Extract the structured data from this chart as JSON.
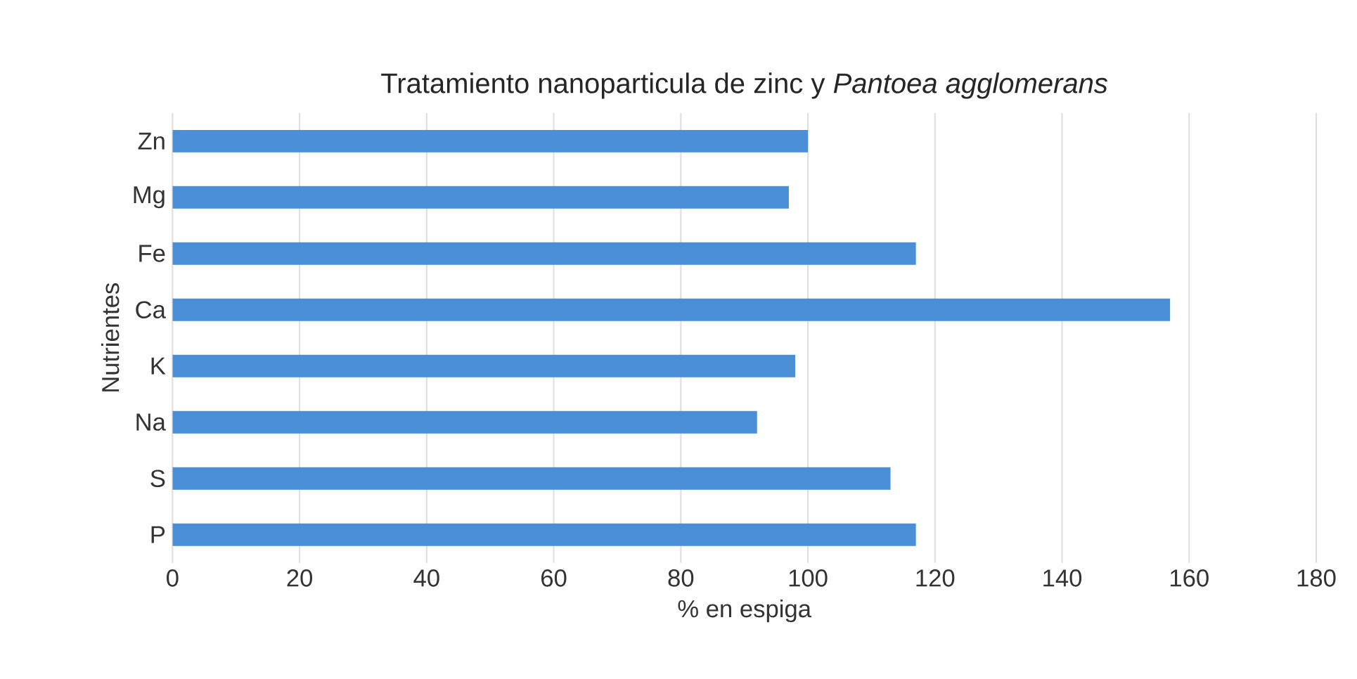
{
  "chart_data": {
    "type": "bar",
    "orientation": "horizontal",
    "title": "Tratamiento nanoparticula de zinc y *Pantoea agglomerans*",
    "xlabel": "% en espiga",
    "ylabel": "Nutrientes",
    "categories": [
      "Zn",
      "Mg",
      "Fe",
      "Ca",
      "K",
      "Na",
      "S",
      "P"
    ],
    "values": [
      100,
      97,
      117,
      157,
      98,
      92,
      113,
      117
    ],
    "color": "#4a8fd6",
    "xlim": [
      0,
      180
    ],
    "xticks": [
      0,
      20,
      40,
      60,
      80,
      100,
      120,
      140,
      160,
      180
    ],
    "grid": "x"
  }
}
